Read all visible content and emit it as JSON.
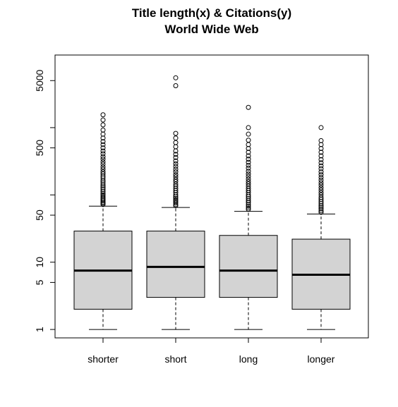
{
  "chart_data": {
    "type": "boxplot",
    "title": "Title length(x) & Citations(y)",
    "subtitle": "World Wide Web",
    "xlabel": "",
    "ylabel": "",
    "y_scale": "log",
    "ylim": [
      0.75,
      12000
    ],
    "y_ticks": [
      1,
      5,
      10,
      50,
      500,
      5000
    ],
    "y_minor_ticks": [
      100,
      1000
    ],
    "grid": false,
    "box_fill": "#d3d3d3",
    "categories": [
      "shorter",
      "short",
      "long",
      "longer"
    ],
    "boxes": [
      {
        "name": "shorter",
        "whisker_low": 1,
        "q1": 2,
        "median": 7.5,
        "q3": 29,
        "whisker_high": 68,
        "outliers": [
          72,
          75,
          78,
          82,
          86,
          90,
          95,
          100,
          105,
          112,
          120,
          128,
          136,
          145,
          155,
          165,
          178,
          190,
          205,
          220,
          240,
          260,
          285,
          310,
          340,
          370,
          410,
          450,
          500,
          560,
          620,
          700,
          800,
          920,
          1100,
          1300,
          1550
        ]
      },
      {
        "name": "short",
        "whisker_low": 1,
        "q1": 3,
        "median": 8.5,
        "q3": 29,
        "whisker_high": 65,
        "outliers": [
          69,
          72,
          76,
          80,
          84,
          89,
          94,
          100,
          108,
          116,
          125,
          135,
          145,
          158,
          170,
          185,
          200,
          220,
          240,
          265,
          290,
          320,
          360,
          400,
          450,
          520,
          600,
          700,
          820,
          4200,
          5500
        ]
      },
      {
        "name": "long",
        "whisker_low": 1,
        "q1": 3,
        "median": 7.5,
        "q3": 25,
        "whisker_high": 57,
        "outliers": [
          61,
          64,
          68,
          72,
          77,
          82,
          88,
          94,
          100,
          108,
          116,
          125,
          135,
          146,
          158,
          172,
          188,
          205,
          225,
          250,
          275,
          305,
          340,
          380,
          430,
          490,
          560,
          650,
          800,
          1000,
          2000
        ]
      },
      {
        "name": "longer",
        "whisker_low": 1,
        "q1": 2,
        "median": 6.5,
        "q3": 22,
        "whisker_high": 52,
        "outliers": [
          55,
          58,
          62,
          66,
          70,
          75,
          80,
          86,
          92,
          100,
          108,
          118,
          128,
          140,
          152,
          166,
          182,
          200,
          220,
          245,
          270,
          300,
          335,
          380,
          430,
          490,
          560,
          640,
          1000
        ]
      }
    ]
  }
}
